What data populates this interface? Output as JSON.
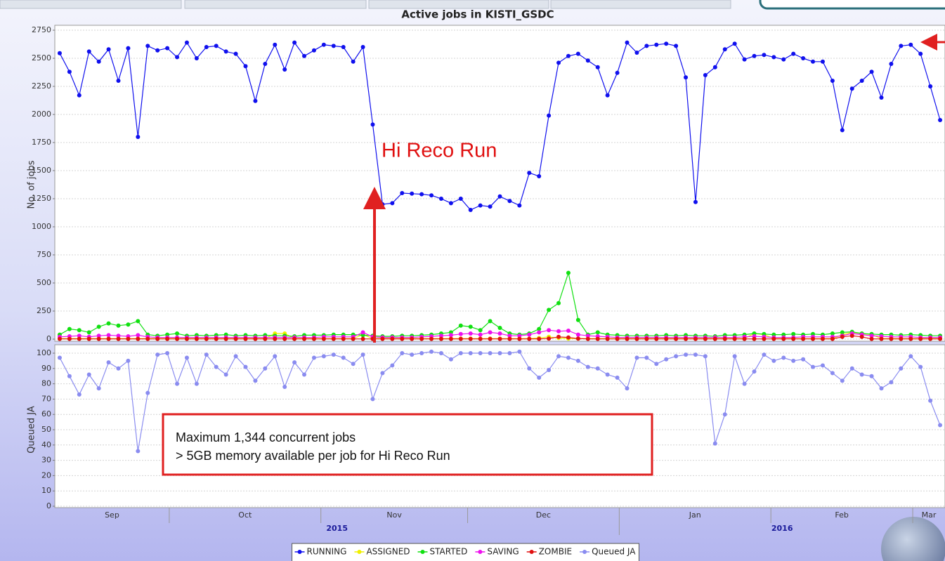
{
  "chart_data": {
    "type": "line",
    "title": "Active jobs in KISTI_GSDC",
    "annotations": [
      "Hi Reco Run",
      "Maximum 1,344 concurrent jobs",
      "> 5GB memory available per job for Hi Reco Run"
    ],
    "x": [
      1,
      3,
      5,
      7,
      9,
      11,
      13,
      15,
      17,
      19,
      21,
      23,
      25,
      27,
      29,
      31,
      33,
      35,
      37,
      39,
      41,
      43,
      45,
      47,
      49,
      51,
      53,
      55,
      57,
      59,
      61,
      63,
      65,
      67,
      69,
      71,
      73,
      75,
      77,
      79,
      81,
      83,
      85,
      87,
      89,
      91,
      93,
      95,
      97,
      99,
      101,
      103,
      105,
      107,
      109,
      111,
      113,
      115,
      117,
      119,
      121,
      123,
      125,
      127,
      129,
      131,
      133,
      135,
      137,
      139,
      141,
      143,
      145,
      147,
      149,
      151,
      153,
      155,
      157,
      159,
      161,
      163,
      165,
      167,
      169,
      171,
      173,
      175,
      177,
      179,
      181
    ],
    "xlim": [
      0,
      182
    ],
    "xticks": [
      {
        "value": -6.6,
        "label": "Sep"
      },
      {
        "value": 23.4,
        "label": "Oct"
      },
      {
        "value": 54.4,
        "label": "Nov"
      },
      {
        "value": 84.4,
        "label": "Dec"
      },
      {
        "value": 115.4,
        "label": "Jan"
      },
      {
        "value": 146.4,
        "label": "Feb"
      },
      {
        "value": 175.4,
        "label": "Mar"
      }
    ],
    "years": [
      {
        "value": -250,
        "label": "2015"
      },
      {
        "value": 115.4,
        "label": "2016"
      }
    ],
    "grid": true,
    "legend": "bottom",
    "panels": [
      {
        "ylabel": "No. of jobs",
        "ylim": [
          0,
          2750
        ],
        "yticks": [
          0,
          250,
          500,
          750,
          1000,
          1250,
          1500,
          1750,
          2000,
          2250,
          2500,
          2750
        ],
        "series": [
          {
            "name": "RUNNING",
            "color": "#1010ee",
            "values": [
              2545,
              2380,
              2170,
              2560,
              2470,
              2580,
              2300,
              2590,
              1800,
              2610,
              2570,
              2590,
              2510,
              2640,
              2500,
              2600,
              2610,
              2560,
              2540,
              2430,
              2120,
              2450,
              2620,
              2400,
              2640,
              2520,
              2570,
              2620,
              2610,
              2600,
              2470,
              2600,
              1910,
              1200,
              1210,
              1300,
              1295,
              1290,
              1280,
              1250,
              1210,
              1250,
              1150,
              1190,
              1180,
              1270,
              1230,
              1190,
              1480,
              1450,
              1990,
              2460,
              2520,
              2540,
              2480,
              2420,
              2170,
              2370,
              2640,
              2550,
              2610,
              2620,
              2630,
              2610,
              2330,
              1220,
              2350,
              2420,
              2580,
              2630,
              2490,
              2520,
              2530,
              2510,
              2490,
              2540,
              2500,
              2470,
              2470,
              2300,
              1860,
              2230,
              2300,
              2380,
              2150,
              2450,
              2610,
              2620,
              2540,
              2250,
              1950
            ]
          },
          {
            "name": "ASSIGNED",
            "color": "#f0f000",
            "values": [
              5,
              5,
              5,
              5,
              5,
              5,
              5,
              5,
              5,
              5,
              5,
              5,
              5,
              5,
              5,
              5,
              5,
              5,
              5,
              5,
              5,
              5,
              50,
              50,
              5,
              5,
              5,
              5,
              5,
              5,
              5,
              40,
              5,
              5,
              5,
              5,
              5,
              5,
              5,
              5,
              5,
              5,
              5,
              5,
              5,
              5,
              5,
              5,
              5,
              10,
              20,
              10,
              5,
              5,
              5,
              5,
              5,
              5,
              5,
              5,
              5,
              5,
              5,
              5,
              5,
              5,
              5,
              5,
              5,
              5,
              5,
              50,
              40,
              5,
              5,
              5,
              5,
              5,
              5,
              5,
              40,
              60,
              50,
              40,
              5,
              5,
              5,
              5,
              5,
              5,
              5
            ]
          },
          {
            "name": "STARTED",
            "color": "#10e010",
            "values": [
              40,
              90,
              80,
              60,
              110,
              140,
              120,
              130,
              160,
              40,
              30,
              40,
              50,
              30,
              35,
              30,
              35,
              40,
              30,
              35,
              30,
              35,
              30,
              30,
              25,
              35,
              35,
              35,
              40,
              40,
              40,
              35,
              30,
              25,
              25,
              30,
              30,
              35,
              40,
              50,
              60,
              120,
              110,
              80,
              160,
              100,
              50,
              40,
              50,
              90,
              260,
              320,
              590,
              170,
              40,
              60,
              40,
              35,
              30,
              30,
              30,
              30,
              35,
              30,
              35,
              30,
              30,
              25,
              35,
              35,
              40,
              50,
              45,
              40,
              40,
              45,
              40,
              45,
              40,
              50,
              60,
              65,
              50,
              45,
              40,
              40,
              35,
              40,
              35,
              30,
              30
            ]
          },
          {
            "name": "SAVING",
            "color": "#ee10ee",
            "values": [
              20,
              25,
              30,
              20,
              30,
              35,
              30,
              25,
              35,
              20,
              15,
              15,
              15,
              15,
              15,
              15,
              15,
              15,
              15,
              15,
              15,
              15,
              15,
              15,
              15,
              15,
              15,
              20,
              20,
              20,
              20,
              60,
              20,
              15,
              15,
              15,
              15,
              20,
              25,
              30,
              35,
              45,
              50,
              40,
              60,
              50,
              30,
              30,
              40,
              60,
              80,
              70,
              75,
              40,
              30,
              25,
              20,
              15,
              15,
              15,
              15,
              15,
              15,
              15,
              15,
              15,
              15,
              15,
              15,
              15,
              20,
              25,
              20,
              15,
              15,
              15,
              20,
              20,
              20,
              20,
              30,
              50,
              40,
              30,
              25,
              20,
              20,
              20,
              15,
              15,
              15
            ]
          },
          {
            "name": "ZOMBIE",
            "color": "#e01010",
            "values": [
              2,
              2,
              2,
              2,
              2,
              2,
              2,
              2,
              2,
              2,
              2,
              2,
              2,
              2,
              2,
              2,
              2,
              2,
              2,
              2,
              2,
              2,
              2,
              2,
              2,
              2,
              2,
              2,
              2,
              2,
              2,
              2,
              2,
              2,
              2,
              2,
              2,
              2,
              2,
              2,
              2,
              2,
              2,
              2,
              2,
              2,
              2,
              2,
              2,
              2,
              5,
              20,
              15,
              5,
              2,
              2,
              2,
              2,
              2,
              2,
              2,
              2,
              2,
              2,
              2,
              2,
              2,
              2,
              2,
              2,
              2,
              2,
              2,
              2,
              2,
              2,
              2,
              2,
              2,
              2,
              20,
              30,
              20,
              2,
              2,
              2,
              2,
              2,
              2,
              2,
              2
            ]
          }
        ]
      },
      {
        "ylabel": "Queued JA",
        "ylim": [
          0,
          100
        ],
        "yticks": [
          0,
          10,
          20,
          30,
          40,
          50,
          60,
          70,
          80,
          90,
          100
        ],
        "series": [
          {
            "name": "Queued JA",
            "color": "#8a8cf0",
            "values": [
              97,
              85,
              73,
              86,
              77,
              94,
              90,
              95,
              36,
              74,
              99,
              100,
              80,
              97,
              80,
              99,
              91,
              86,
              98,
              91,
              82,
              90,
              98,
              78,
              94,
              86,
              97,
              98,
              99,
              97,
              93,
              99,
              70,
              87,
              92,
              100,
              99,
              100,
              101,
              100,
              96,
              100,
              100,
              100,
              100,
              100,
              100,
              101,
              90,
              84,
              89,
              98,
              97,
              95,
              91,
              90,
              86,
              84,
              77,
              97,
              97,
              93,
              96,
              98,
              99,
              99,
              98,
              41,
              60,
              98,
              80,
              88,
              99,
              95,
              97,
              95,
              96,
              91,
              92,
              87,
              82,
              90,
              86,
              85,
              77,
              81,
              90,
              98,
              91,
              69,
              53
            ]
          }
        ]
      }
    ]
  }
}
